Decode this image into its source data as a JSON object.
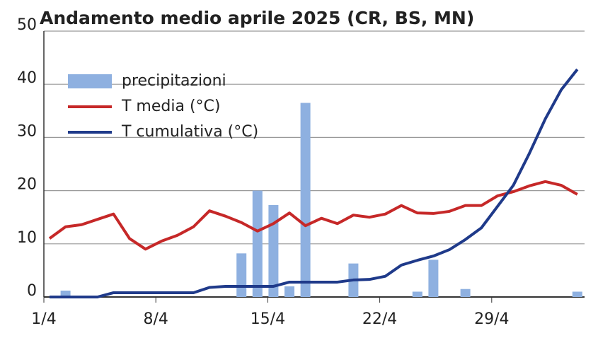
{
  "chart_data": {
    "type": "bar_line",
    "title": "Andamento medio aprile 2025 (CR, BS, MN)",
    "categories": [
      "1/4",
      null,
      null,
      null,
      null,
      null,
      null,
      "8/4",
      null,
      null,
      null,
      null,
      null,
      null,
      "15/4",
      null,
      null,
      null,
      null,
      null,
      null,
      "22/4",
      null,
      null,
      null,
      null,
      null,
      null,
      "29/4",
      null,
      null,
      null,
      null,
      null
    ],
    "series": [
      {
        "name": "precipitazioni",
        "kind": "bar",
        "color": "#8eb0e0",
        "values": [
          0,
          1.2,
          0,
          0,
          0,
          0,
          0,
          0,
          0,
          0,
          0,
          0,
          8.2,
          20,
          17.3,
          2,
          36.5,
          0,
          0,
          6.3,
          0,
          0,
          0,
          1,
          7,
          0,
          1.5,
          0,
          0,
          0,
          0,
          0,
          0,
          1
        ]
      },
      {
        "name": "T media (°C)",
        "kind": "line",
        "color": "#c62828",
        "values": [
          11,
          13.2,
          13.6,
          14.6,
          15.6,
          11,
          9,
          10.5,
          11.6,
          13.2,
          16.2,
          15.2,
          14,
          12.4,
          13.8,
          15.8,
          13.4,
          14.8,
          13.8,
          15.4,
          15,
          15.6,
          17.2,
          15.8,
          15.7,
          16.1,
          17.2,
          17.2,
          19,
          19.8,
          20.9,
          21.7,
          21,
          19.3
        ]
      },
      {
        "name": "T cumulativa (°C)",
        "kind": "line",
        "color": "#1f3a8a",
        "values": [
          0,
          0,
          0,
          0,
          0.8,
          0.8,
          0.8,
          0.8,
          0.8,
          0.8,
          1.8,
          2,
          2,
          2,
          2,
          2.8,
          2.8,
          2.8,
          2.8,
          3.2,
          3.3,
          3.9,
          6,
          6.9,
          7.7,
          8.9,
          10.8,
          13,
          17,
          21,
          27,
          33.5,
          39,
          42.8
        ]
      }
    ],
    "ylim": [
      0,
      50
    ],
    "yticks": [
      0,
      10,
      20,
      30,
      40,
      50
    ],
    "grid": true
  }
}
